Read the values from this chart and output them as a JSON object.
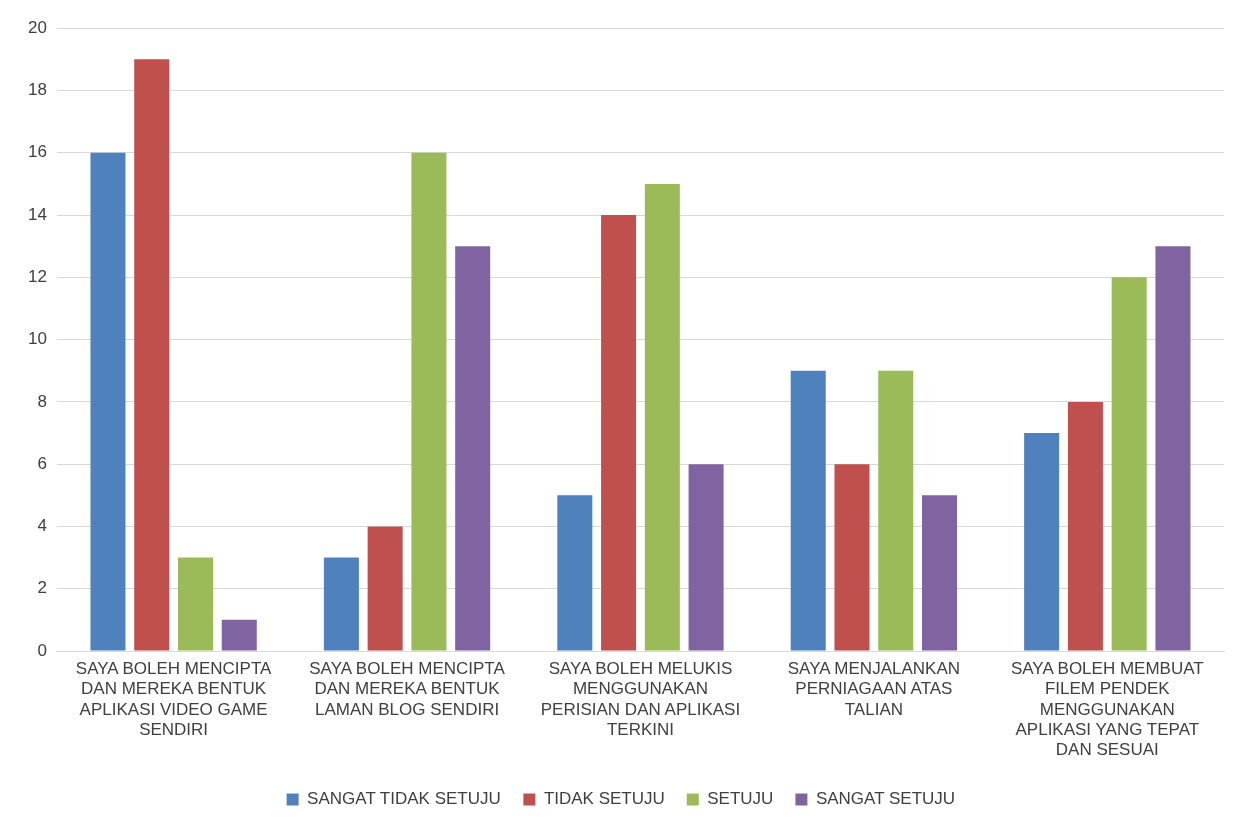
{
  "chart_data": {
    "type": "bar",
    "categories": [
      "SAYA BOLEH MENCIPTA DAN MEREKA BENTUK APLIKASI VIDEO GAME SENDIRI",
      "SAYA BOLEH MENCIPTA DAN MEREKA BENTUK LAMAN BLOG SENDIRI",
      "SAYA BOLEH MELUKIS MENGGUNAKAN PERISIAN DAN APLIKASI TERKINI",
      "SAYA MENJALANKAN PERNIAGAAN ATAS TALIAN",
      "SAYA BOLEH MEMBUAT FILEM PENDEK MENGGUNAKAN APLIKASI YANG TEPAT DAN SESUAI"
    ],
    "series": [
      {
        "name": "SANGAT TIDAK SETUJU",
        "color": "#4f81bd",
        "values": [
          16,
          3,
          5,
          9,
          7
        ]
      },
      {
        "name": "TIDAK SETUJU",
        "color": "#c0504d",
        "values": [
          19,
          4,
          14,
          6,
          8
        ]
      },
      {
        "name": "SETUJU",
        "color": "#9bbb59",
        "values": [
          3,
          16,
          15,
          9,
          12
        ]
      },
      {
        "name": "SANGAT SETUJU",
        "color": "#8064a2",
        "values": [
          1,
          13,
          6,
          5,
          13
        ]
      }
    ],
    "ylim": [
      0,
      20
    ],
    "yticks": [
      0,
      2,
      4,
      6,
      8,
      10,
      12,
      14,
      16,
      18,
      20
    ],
    "grid": "y",
    "legend": "bottom"
  }
}
